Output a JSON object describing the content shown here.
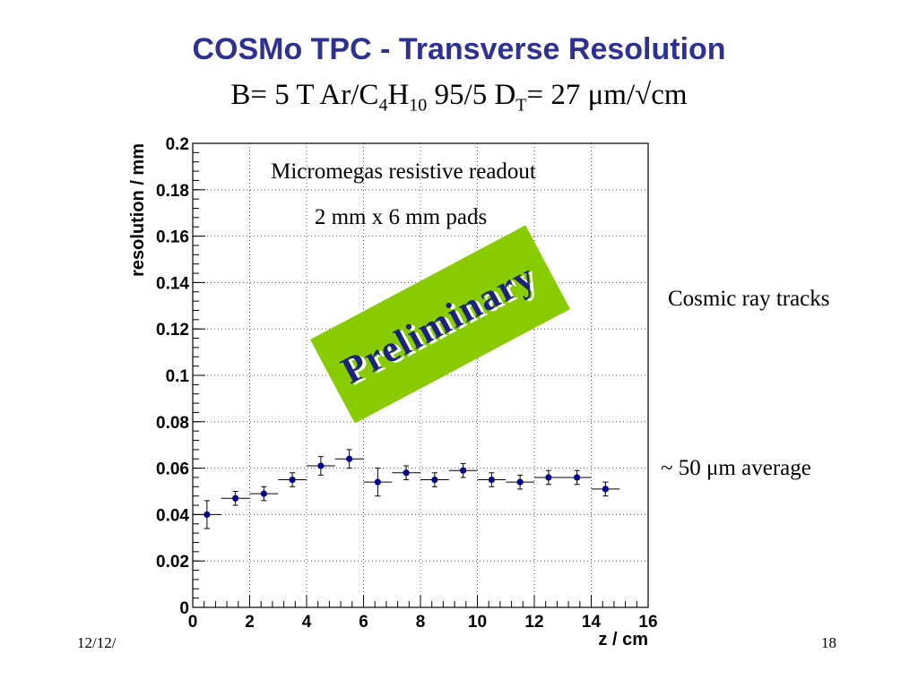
{
  "slide": {
    "title": "COSMo TPC - Transverse Resolution",
    "subtitle": {
      "p1": "B= 5 T Ar/C",
      "s1": "4",
      "p2": "H",
      "s2": "10",
      "p3": " 95/5 D",
      "s3": "T",
      "p4": "= 27 μm/√cm"
    },
    "date": "12/12/",
    "page": "18",
    "notes": {
      "cosmic": "Cosmic ray tracks",
      "average": "~ 50 μm average"
    }
  },
  "chart_data": {
    "type": "scatter",
    "xlabel": "z / cm",
    "ylabel": "resolution / mm",
    "xlim": [
      0,
      16
    ],
    "ylim": [
      0,
      0.2
    ],
    "x_ticks": [
      "0",
      "2",
      "4",
      "6",
      "8",
      "10",
      "12",
      "14",
      "16"
    ],
    "y_ticks": [
      "0",
      "0.02",
      "0.04",
      "0.06",
      "0.08",
      "0.1",
      "0.12",
      "0.14",
      "0.16",
      "0.18",
      "0.2"
    ],
    "grid": true,
    "annotations": [
      "Micromegas resistive readout",
      "2 mm x 6 mm pads"
    ],
    "stamp": "Preliminary",
    "stamp_color": "#88cc00",
    "marker_color": "#00008b",
    "points": [
      {
        "x": 0.5,
        "y": 0.04,
        "xerr": 0.5,
        "yerr": 0.006
      },
      {
        "x": 1.5,
        "y": 0.047,
        "xerr": 0.5,
        "yerr": 0.003
      },
      {
        "x": 2.5,
        "y": 0.049,
        "xerr": 0.5,
        "yerr": 0.003
      },
      {
        "x": 3.5,
        "y": 0.055,
        "xerr": 0.5,
        "yerr": 0.003
      },
      {
        "x": 4.5,
        "y": 0.061,
        "xerr": 0.5,
        "yerr": 0.004
      },
      {
        "x": 5.5,
        "y": 0.064,
        "xerr": 0.5,
        "yerr": 0.004
      },
      {
        "x": 6.5,
        "y": 0.054,
        "xerr": 0.5,
        "yerr": 0.006
      },
      {
        "x": 7.5,
        "y": 0.058,
        "xerr": 0.5,
        "yerr": 0.003
      },
      {
        "x": 8.5,
        "y": 0.055,
        "xerr": 0.5,
        "yerr": 0.003
      },
      {
        "x": 9.5,
        "y": 0.059,
        "xerr": 0.5,
        "yerr": 0.003
      },
      {
        "x": 10.5,
        "y": 0.055,
        "xerr": 0.5,
        "yerr": 0.003
      },
      {
        "x": 11.5,
        "y": 0.054,
        "xerr": 0.5,
        "yerr": 0.003
      },
      {
        "x": 12.5,
        "y": 0.056,
        "xerr": 0.5,
        "yerr": 0.003
      },
      {
        "x": 13.5,
        "y": 0.056,
        "xerr": 0.5,
        "yerr": 0.003
      },
      {
        "x": 14.5,
        "y": 0.051,
        "xerr": 0.5,
        "yerr": 0.003
      }
    ]
  }
}
